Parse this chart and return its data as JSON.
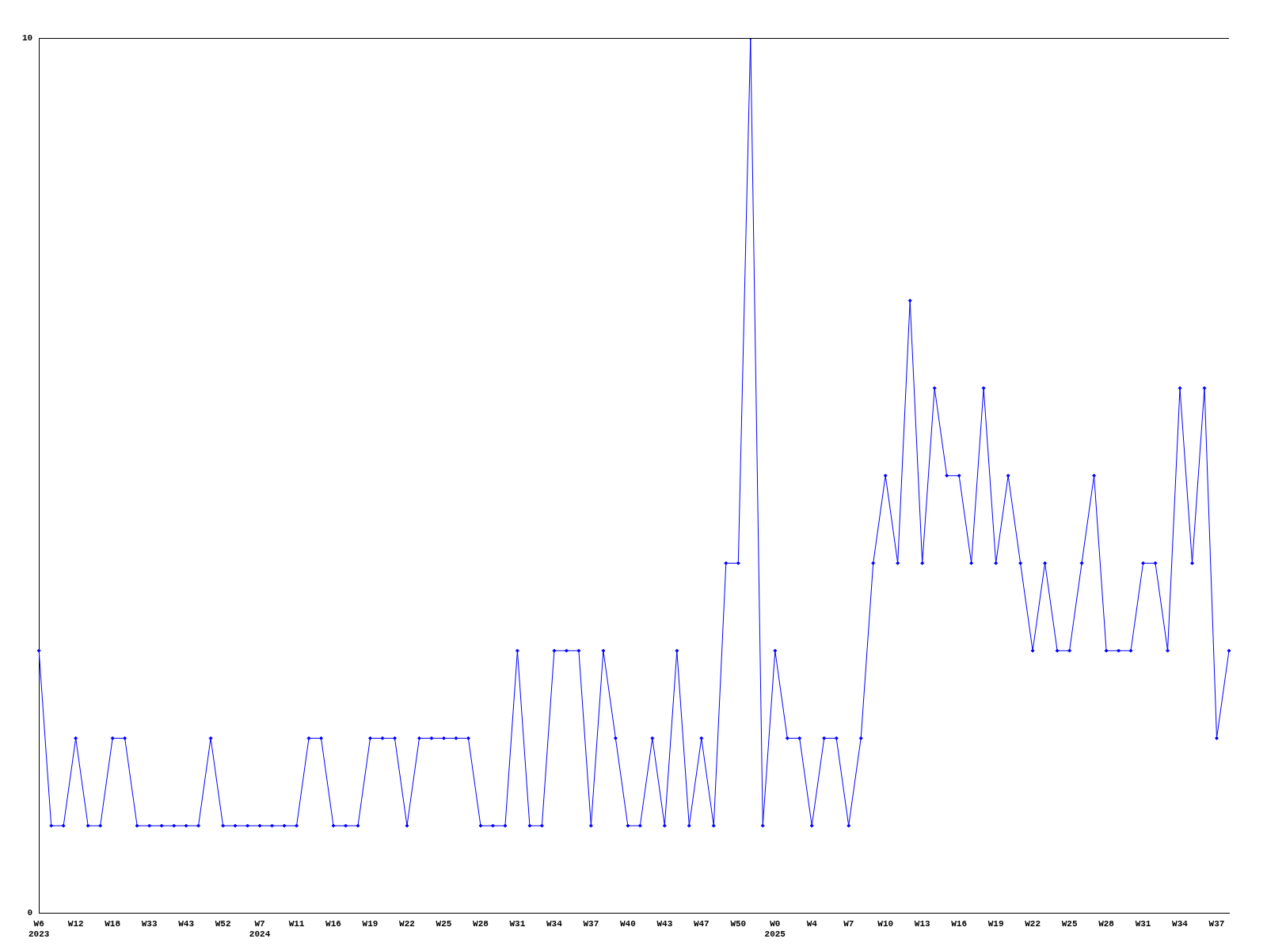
{
  "chart_data": {
    "type": "line",
    "categories": [
      "W6\n2023",
      null,
      null,
      "W12",
      null,
      null,
      "W18",
      null,
      null,
      "W33",
      null,
      null,
      "W43",
      null,
      null,
      "W52",
      null,
      null,
      "W7\n2024",
      null,
      null,
      "W11",
      null,
      null,
      "W16",
      null,
      null,
      "W19",
      null,
      null,
      "W22",
      null,
      null,
      "W25",
      null,
      null,
      "W28",
      null,
      null,
      "W31",
      null,
      null,
      "W34",
      null,
      null,
      "W37",
      null,
      null,
      "W40",
      null,
      null,
      "W43",
      null,
      null,
      "W47",
      null,
      null,
      "W50",
      null,
      null,
      "W0\n2025",
      null,
      null,
      "W4",
      null,
      null,
      "W7",
      null,
      null,
      "W10",
      null,
      null,
      "W13",
      null,
      null,
      "W16",
      null,
      null,
      "W19",
      null,
      null,
      "W22",
      null,
      null,
      "W25",
      null,
      null,
      "W28",
      null,
      null,
      "W31",
      null,
      null,
      "W34",
      null,
      null,
      "W37",
      null
    ],
    "series": [
      {
        "color": "#0000ff",
        "values": [
          3,
          1,
          1,
          2,
          1,
          1,
          2,
          2,
          1,
          1,
          1,
          1,
          1,
          1,
          2,
          1,
          1,
          1,
          1,
          1,
          1,
          1,
          2,
          2,
          1,
          1,
          1,
          2,
          2,
          2,
          1,
          2,
          2,
          2,
          2,
          2,
          1,
          1,
          1,
          3,
          1,
          1,
          3,
          3,
          3,
          1,
          3,
          2,
          1,
          1,
          2,
          1,
          3,
          1,
          2,
          1,
          4,
          4,
          10,
          1,
          3,
          2,
          2,
          1,
          2,
          2,
          1,
          2,
          4,
          5,
          4,
          7,
          4,
          6,
          5,
          5,
          4,
          6,
          4,
          5,
          4,
          3,
          4,
          3,
          3,
          4,
          5,
          3,
          3,
          3,
          4,
          4,
          3,
          6,
          4,
          6,
          2,
          3
        ]
      }
    ],
    "ylim": [
      0,
      10
    ],
    "yticks": [
      0,
      10
    ],
    "grid": false,
    "legend": false,
    "marker": "diamond",
    "line_style": "solid"
  }
}
